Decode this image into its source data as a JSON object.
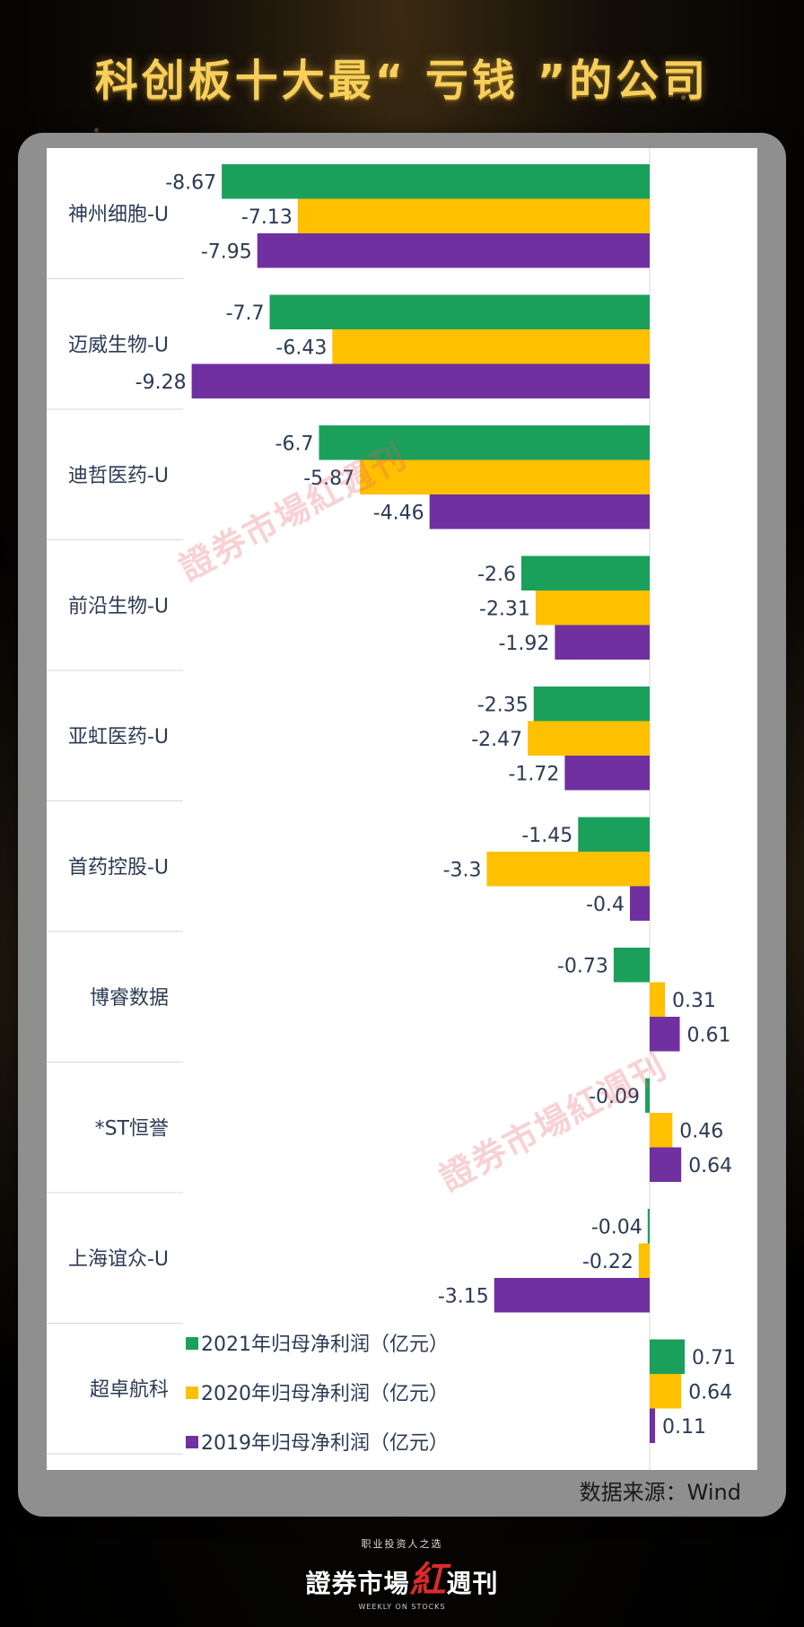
{
  "title": "科创板十大最“ 亏钱 ”的公司",
  "source": "数据来源：Wind",
  "watermark": "證券市場紅週刊",
  "logo": {
    "tagline": "职业投资人之选",
    "name": "證券市場",
    "red": "紅",
    "suffix": "週刊",
    "sub": "WEEKLY ON STOCKS"
  },
  "chart_data": {
    "type": "bar",
    "orientation": "horizontal",
    "categories": [
      "神州细胞-U",
      "迈威生物-U",
      "迪哲医药-U",
      "前沿生物-U",
      "亚虹医药-U",
      "首药控股-U",
      "博睿数据",
      "*ST恒誉",
      "上海谊众-U",
      "超卓航科"
    ],
    "series": [
      {
        "name": "2021年归母净利润（亿元）",
        "color": "#1aa05a",
        "values": [
          -8.67,
          -7.7,
          -6.7,
          -2.6,
          -2.35,
          -1.45,
          -0.73,
          -0.09,
          -0.04,
          0.71
        ]
      },
      {
        "name": "2020年归母净利润（亿元）",
        "color": "#ffc000",
        "values": [
          -7.13,
          -6.43,
          -5.87,
          -2.31,
          -2.47,
          -3.3,
          0.31,
          0.46,
          -0.22,
          0.64
        ]
      },
      {
        "name": "2019年归母净利润（亿元）",
        "color": "#7030a0",
        "values": [
          -7.95,
          -9.28,
          -4.46,
          -1.92,
          -1.72,
          -0.4,
          0.61,
          0.64,
          -3.15,
          0.11
        ]
      }
    ],
    "labels": [
      [
        "-8.67",
        "-7.13",
        "-7.95"
      ],
      [
        "-7.7",
        "-6.43",
        "-9.28"
      ],
      [
        "-6.7",
        "-5.87",
        "-4.46"
      ],
      [
        "-2.6",
        "-2.31",
        "-1.92"
      ],
      [
        "-2.35",
        "-2.47",
        "-1.72"
      ],
      [
        "-1.45",
        "-3.3",
        "-0.4"
      ],
      [
        "-0.73",
        "0.31",
        "0.61"
      ],
      [
        "-0.09",
        "0.46",
        "0.64"
      ],
      [
        "-0.04",
        "-0.22",
        "-3.15"
      ],
      [
        "0.71",
        "0.64",
        "0.11"
      ]
    ],
    "legend_position": "bottom-left",
    "grid": false
  }
}
